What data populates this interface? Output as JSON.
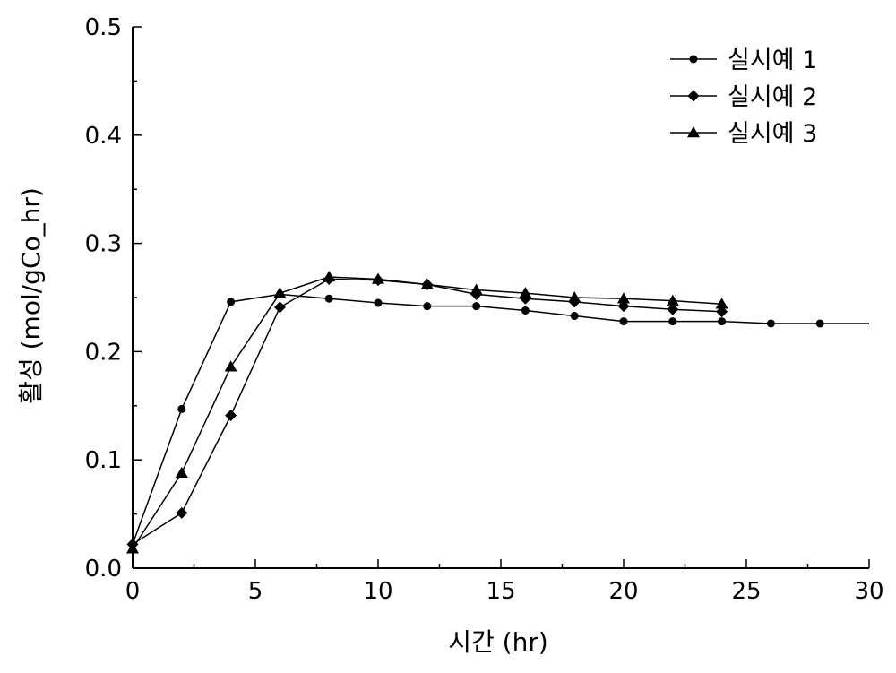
{
  "chart_data": {
    "type": "line",
    "xlabel": "시간 (hr)",
    "ylabel": "활성 (mol/gCo_hr)",
    "xlim": [
      0,
      30
    ],
    "ylim": [
      0,
      0.5
    ],
    "xticks": [
      0,
      5,
      10,
      15,
      20,
      25,
      30
    ],
    "xtick_labels": [
      "0",
      "5",
      "10",
      "15",
      "20",
      "25",
      "30"
    ],
    "yticks": [
      0.0,
      0.1,
      0.2,
      0.3,
      0.4,
      0.5
    ],
    "ytick_labels": [
      "0.0",
      "0.1",
      "0.2",
      "0.3",
      "0.4",
      "0.5"
    ],
    "grid": false,
    "legend_position": "top-right",
    "series": [
      {
        "name": "실시예 1",
        "marker": "circle",
        "x": [
          0,
          2,
          4,
          6,
          8,
          10,
          12,
          14,
          16,
          18,
          20,
          22,
          24,
          26,
          28,
          30
        ],
        "y": [
          0.022,
          0.147,
          0.246,
          0.253,
          0.249,
          0.245,
          0.242,
          0.242,
          0.238,
          0.233,
          0.228,
          0.228,
          0.228,
          0.226,
          0.226,
          0.226
        ],
        "marker_count": 15
      },
      {
        "name": "실시예 2",
        "marker": "diamond",
        "x": [
          0,
          2,
          4,
          6,
          8,
          10,
          12,
          14,
          16,
          18,
          20,
          22,
          24
        ],
        "y": [
          0.022,
          0.051,
          0.141,
          0.241,
          0.267,
          0.266,
          0.262,
          0.253,
          0.249,
          0.246,
          0.242,
          0.239,
          0.237
        ]
      },
      {
        "name": "실시예 3",
        "marker": "triangle",
        "x": [
          0,
          2,
          4,
          6,
          8,
          10,
          12,
          14,
          16,
          18,
          20,
          22,
          24
        ],
        "y": [
          0.018,
          0.088,
          0.186,
          0.254,
          0.269,
          0.267,
          0.262,
          0.257,
          0.254,
          0.25,
          0.249,
          0.247,
          0.244
        ]
      }
    ]
  }
}
